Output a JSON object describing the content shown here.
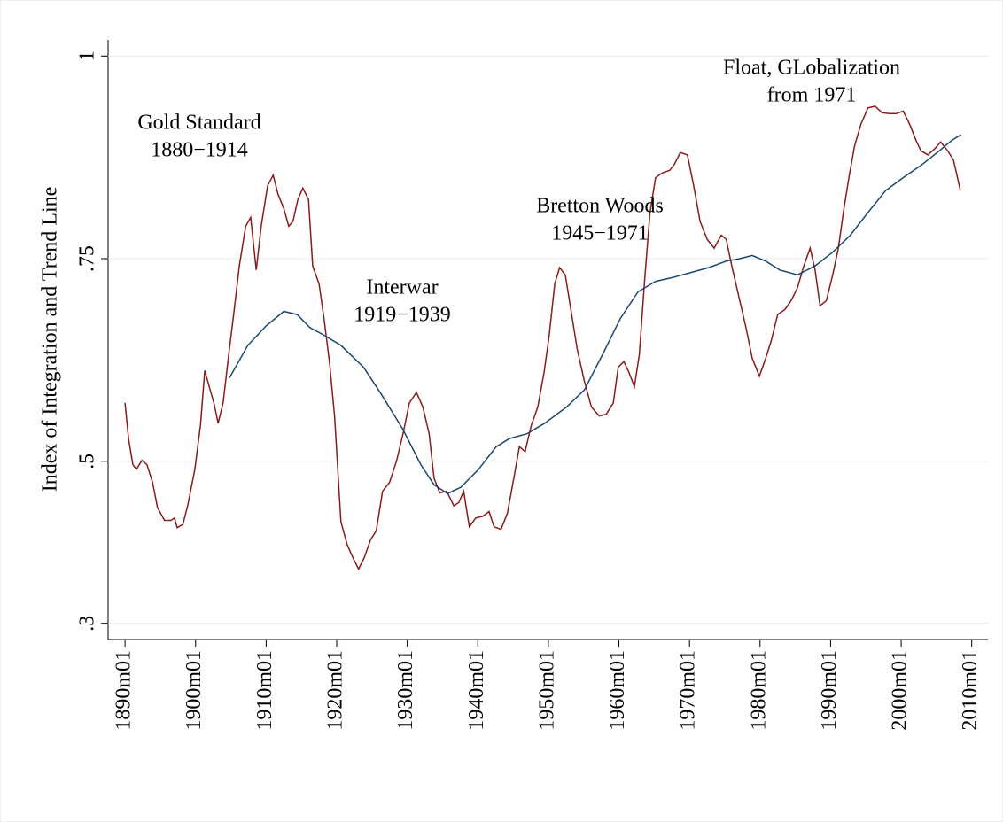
{
  "chart_data": {
    "type": "line",
    "y_label": "Index of Integration and Trend Line",
    "xlim": [
      1887.6,
      2012.3
    ],
    "ylim": [
      0.28,
      1.02
    ],
    "grid": true,
    "xticks": [
      {
        "value": 1890,
        "label": "1890m01"
      },
      {
        "value": 1900,
        "label": "1900m01"
      },
      {
        "value": 1910,
        "label": "1910m01"
      },
      {
        "value": 1920,
        "label": "1920m01"
      },
      {
        "value": 1930,
        "label": "1930m01"
      },
      {
        "value": 1940,
        "label": "1940m01"
      },
      {
        "value": 1950,
        "label": "1950m01"
      },
      {
        "value": 1960,
        "label": "1960m01"
      },
      {
        "value": 1970,
        "label": "1970m01"
      },
      {
        "value": 1980,
        "label": "1980m01"
      },
      {
        "value": 1990,
        "label": "1990m01"
      },
      {
        "value": 2000,
        "label": "2000m01"
      },
      {
        "value": 2010,
        "label": "2010m01"
      }
    ],
    "yticks": [
      {
        "value": 0.3,
        "label": ".3"
      },
      {
        "value": 0.5,
        "label": ".5"
      },
      {
        "value": 0.75,
        "label": ".75"
      },
      1
    ],
    "annotations": [
      [
        "Gold Standard",
        "1880−1914"
      ],
      [
        "Interwar",
        "1919−1939"
      ],
      [
        "Bretton Woods",
        "1945−1971"
      ],
      [
        "Float, GLobalization",
        "from 1971"
      ]
    ],
    "series": [
      {
        "color": "#8b1a1a",
        "x": [
          1890,
          1890.5,
          1891.1,
          1891.6,
          1892.4,
          1893.1,
          1893.9,
          1894.6,
          1895.6,
          1896.5,
          1897,
          1897.4,
          1898.2,
          1898.9,
          1899.9,
          1900.7,
          1901.3,
          1902,
          1902.6,
          1903.2,
          1903.9,
          1904.7,
          1905.4,
          1906.2,
          1907.1,
          1907.8,
          1908.6,
          1909.3,
          1910.2,
          1911,
          1911.7,
          1912.5,
          1913.2,
          1913.8,
          1914.5,
          1915.2,
          1916,
          1916.6,
          1917.5,
          1918.2,
          1919,
          1919.7,
          1920.6,
          1921.5,
          1922.3,
          1923.1,
          1923.9,
          1924.8,
          1925.6,
          1926.5,
          1927.5,
          1928.5,
          1929.4,
          1930.3,
          1931.3,
          1932.2,
          1933.1,
          1933.8,
          1934.6,
          1935.6,
          1936.6,
          1937.3,
          1938,
          1938.8,
          1939.7,
          1940.7,
          1941.6,
          1942.3,
          1943.3,
          1944.2,
          1945.1,
          1945.9,
          1946.7,
          1947.6,
          1948.5,
          1949.4,
          1950.1,
          1950.9,
          1951.6,
          1952.4,
          1953.3,
          1954.1,
          1955.1,
          1956.1,
          1957.2,
          1958.2,
          1959.2,
          1959.9,
          1960.7,
          1961.4,
          1962.2,
          1962.9,
          1963.7,
          1964.4,
          1965.2,
          1966.2,
          1967.2,
          1967.9,
          1968.7,
          1969.7,
          1970.6,
          1971.5,
          1972.5,
          1973.5,
          1974.5,
          1975.2,
          1976,
          1977,
          1978,
          1978.9,
          1979.9,
          1980.8,
          1981.6,
          1982.5,
          1983.5,
          1984.4,
          1985.3,
          1986.2,
          1987.1,
          1987.8,
          1988.5,
          1989.4,
          1990.3,
          1991.1,
          1991.8,
          1992.6,
          1993.4,
          1994.3,
          1995.3,
          1996.3,
          1997.3,
          1998.3,
          1999.3,
          2000.3,
          2001.2,
          2002.1,
          2002.8,
          2003.8,
          2004.8,
          2005.6,
          2006.6,
          2007.4,
          2007.9,
          2008.4
        ],
        "values": [
          0.572,
          0.528,
          0.496,
          0.49,
          0.501,
          0.496,
          0.474,
          0.443,
          0.427,
          0.427,
          0.43,
          0.418,
          0.422,
          0.446,
          0.49,
          0.545,
          0.612,
          0.59,
          0.572,
          0.547,
          0.572,
          0.632,
          0.681,
          0.741,
          0.79,
          0.801,
          0.736,
          0.79,
          0.84,
          0.853,
          0.829,
          0.812,
          0.79,
          0.796,
          0.823,
          0.837,
          0.823,
          0.741,
          0.719,
          0.676,
          0.621,
          0.556,
          0.425,
          0.397,
          0.381,
          0.367,
          0.381,
          0.403,
          0.414,
          0.463,
          0.474,
          0.501,
          0.534,
          0.572,
          0.585,
          0.567,
          0.534,
          0.479,
          0.461,
          0.463,
          0.445,
          0.449,
          0.463,
          0.419,
          0.43,
          0.432,
          0.438,
          0.419,
          0.416,
          0.436,
          0.479,
          0.518,
          0.512,
          0.545,
          0.567,
          0.61,
          0.654,
          0.719,
          0.739,
          0.73,
          0.681,
          0.638,
          0.599,
          0.567,
          0.556,
          0.558,
          0.572,
          0.616,
          0.623,
          0.61,
          0.592,
          0.632,
          0.73,
          0.807,
          0.85,
          0.856,
          0.859,
          0.867,
          0.881,
          0.878,
          0.84,
          0.796,
          0.774,
          0.763,
          0.779,
          0.774,
          0.741,
          0.703,
          0.665,
          0.627,
          0.605,
          0.627,
          0.649,
          0.681,
          0.687,
          0.698,
          0.714,
          0.741,
          0.763,
          0.736,
          0.692,
          0.698,
          0.73,
          0.763,
          0.807,
          0.85,
          0.889,
          0.916,
          0.936,
          0.938,
          0.93,
          0.929,
          0.929,
          0.932,
          0.916,
          0.896,
          0.883,
          0.878,
          0.886,
          0.894,
          0.883,
          0.872,
          0.853,
          0.834
        ]
      },
      {
        "color": "#1a476f",
        "x": [
          1904.8,
          1907.4,
          1910,
          1912.5,
          1914.4,
          1916.2,
          1918.1,
          1920.6,
          1923.8,
          1926.3,
          1929.4,
          1931.9,
          1933.8,
          1935.7,
          1937.6,
          1940.1,
          1942.6,
          1944.5,
          1947,
          1949.5,
          1952.6,
          1955.1,
          1957.7,
          1960.2,
          1962.7,
          1965.2,
          1967.7,
          1970.2,
          1972.7,
          1975.2,
          1977.1,
          1978.9,
          1980.8,
          1982.8,
          1985.3,
          1987.8,
          1990.3,
          1992.8,
          1995.3,
          1997.8,
          2000.3,
          2002.8,
          2005.4,
          2007.2,
          2008.5
        ],
        "values": [
          0.603,
          0.643,
          0.667,
          0.685,
          0.681,
          0.665,
          0.656,
          0.643,
          0.616,
          0.583,
          0.539,
          0.496,
          0.471,
          0.46,
          0.468,
          0.49,
          0.518,
          0.528,
          0.534,
          0.547,
          0.567,
          0.588,
          0.632,
          0.676,
          0.709,
          0.722,
          0.727,
          0.733,
          0.739,
          0.747,
          0.75,
          0.754,
          0.747,
          0.736,
          0.73,
          0.741,
          0.758,
          0.779,
          0.807,
          0.834,
          0.85,
          0.865,
          0.883,
          0.896,
          0.903
        ]
      }
    ]
  }
}
